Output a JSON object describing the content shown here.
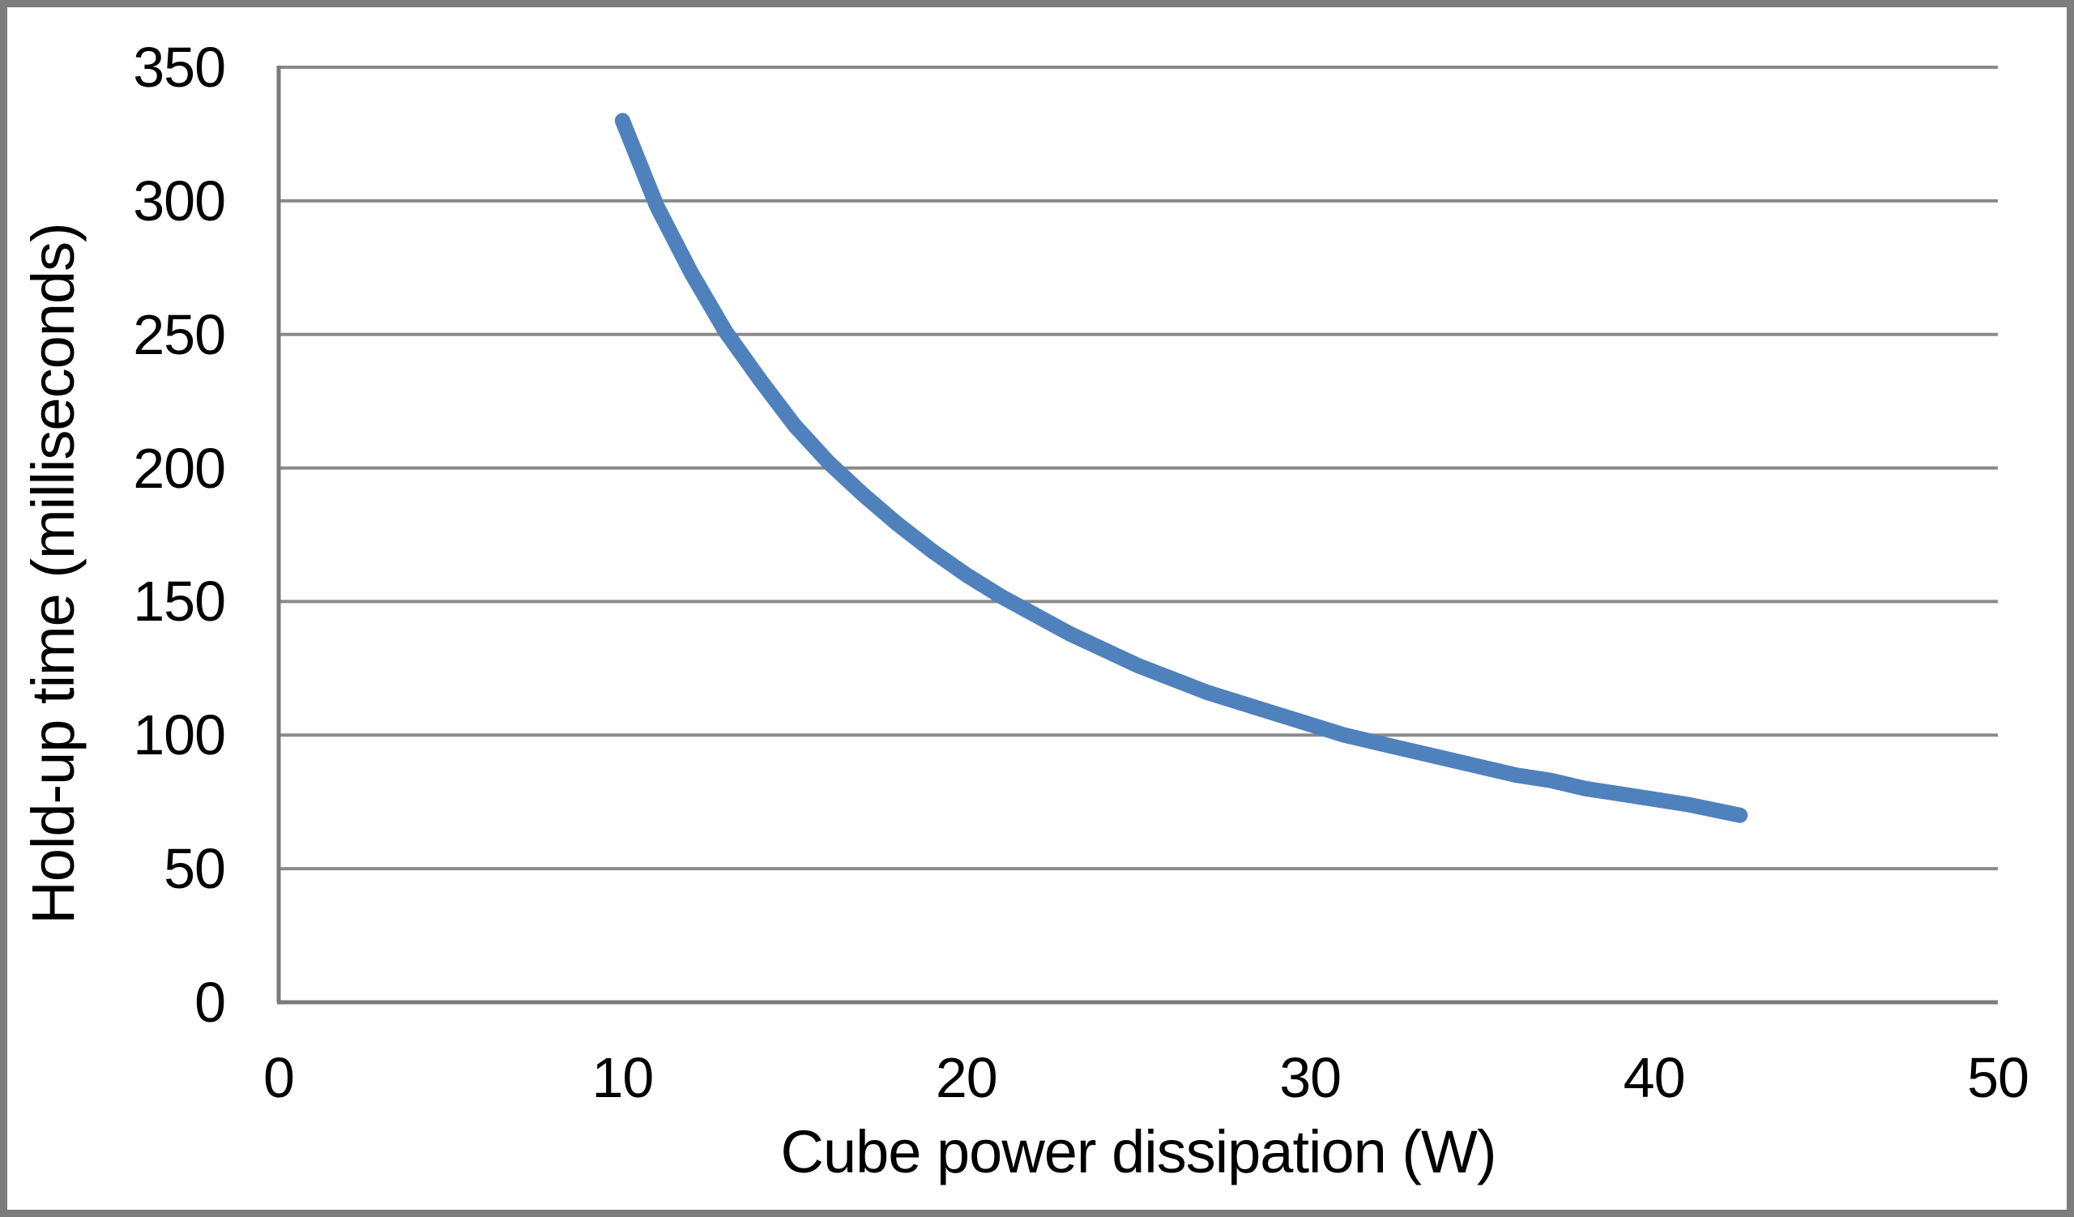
{
  "figure": {
    "background_color": "#ffffff",
    "border_color": "#7d7d7d",
    "text_color": "#000000"
  },
  "chart_data": {
    "type": "line",
    "title": "",
    "xlabel": "Cube power dissipation (W)",
    "ylabel": "Hold-up time (milliseconds)",
    "xlim": [
      0,
      50
    ],
    "ylim": [
      0,
      350
    ],
    "xticks": [
      0,
      10,
      20,
      30,
      40,
      50
    ],
    "yticks": [
      0,
      50,
      100,
      150,
      200,
      250,
      300,
      350
    ],
    "grid": "horizontal-only",
    "legend_position": "none",
    "gridline_color": "#8a8a8a",
    "axis_line_color": "#7a7a7a",
    "series": [
      {
        "color": "#4f81bd",
        "stroke_width": 19,
        "points": [
          [
            10,
            330
          ],
          [
            11,
            298
          ],
          [
            12,
            273
          ],
          [
            13,
            251
          ],
          [
            14,
            233
          ],
          [
            15,
            216
          ],
          [
            16,
            202
          ],
          [
            17,
            190
          ],
          [
            18,
            179
          ],
          [
            19,
            169
          ],
          [
            20,
            160
          ],
          [
            21,
            152
          ],
          [
            22,
            145
          ],
          [
            23,
            138
          ],
          [
            24,
            132
          ],
          [
            25,
            126
          ],
          [
            26,
            121
          ],
          [
            27,
            116
          ],
          [
            28,
            112
          ],
          [
            29,
            108
          ],
          [
            30,
            104
          ],
          [
            31,
            100
          ],
          [
            32,
            97
          ],
          [
            33,
            94
          ],
          [
            34,
            91
          ],
          [
            35,
            88
          ],
          [
            36,
            85
          ],
          [
            37,
            83
          ],
          [
            38,
            80
          ],
          [
            39,
            78
          ],
          [
            40,
            76
          ],
          [
            41,
            74
          ],
          [
            42.5,
            70
          ]
        ]
      }
    ]
  }
}
